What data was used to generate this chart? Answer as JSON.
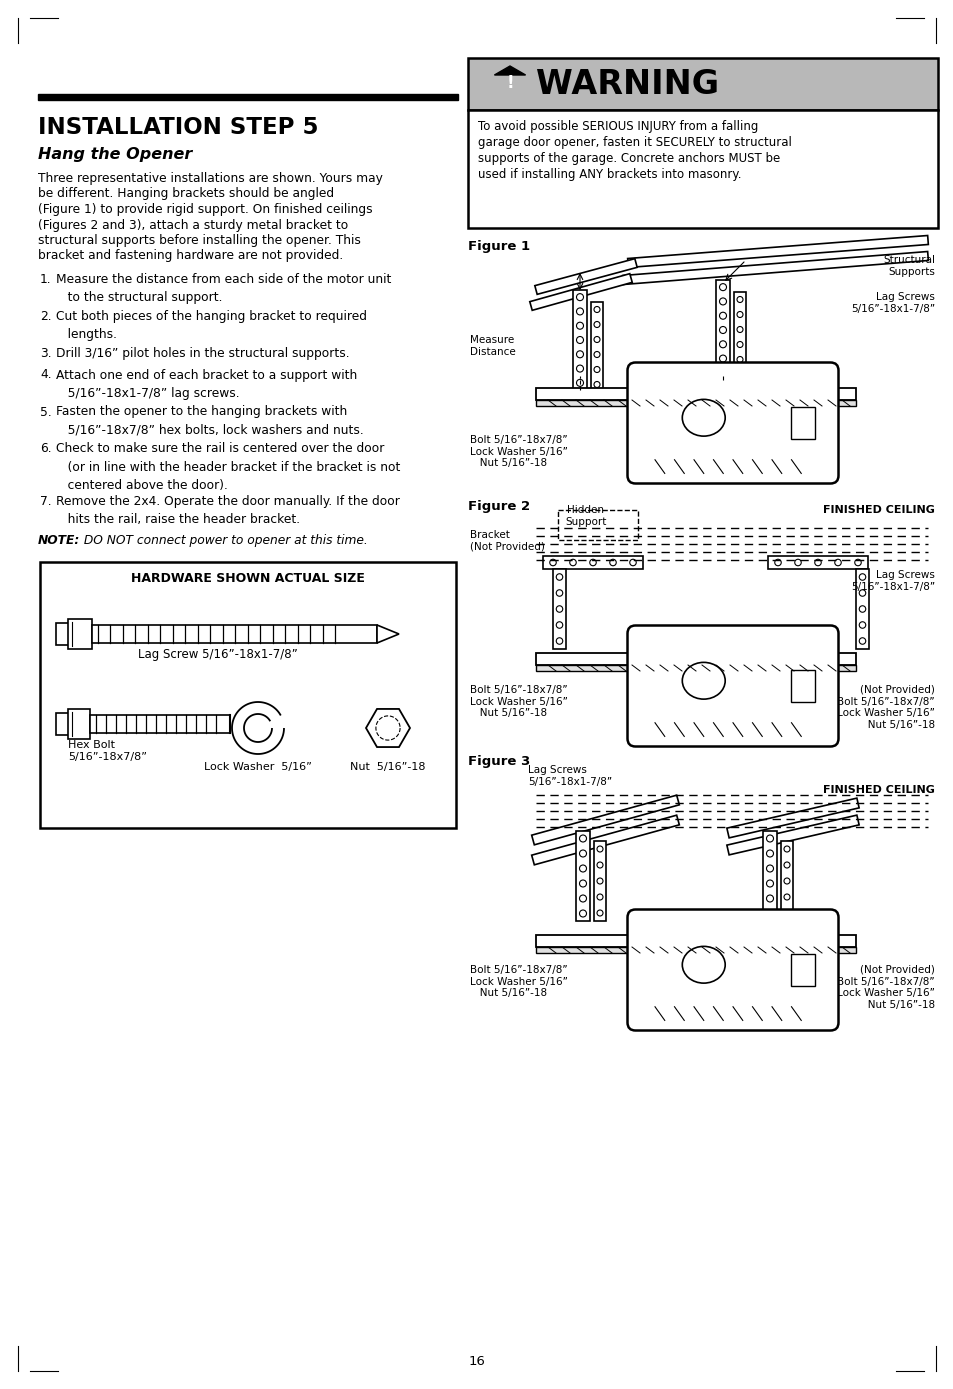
{
  "page_bg": "#ffffff",
  "title": "INSTALLATION STEP 5",
  "subtitle": "Hang the Opener",
  "intro_text": "Three representative installations are shown. Yours may\nbe different. Hanging brackets should be angled\n(Figure 1) to provide rigid support. On finished ceilings\n(Figures 2 and 3), attach a sturdy metal bracket to\nstructural supports before installing the opener. This\nbracket and fastening hardware are not provided.",
  "steps": [
    "1.  Measure the distance from each side of the motor unit\n    to the structural support.",
    "2.  Cut both pieces of the hanging bracket to required\n    lengths.",
    "3.  Drill 3/16” pilot holes in the structural supports.",
    "4.  Attach one end of each bracket to a support with\n    5/16”-18x1-7/8” lag screws.",
    "5.  Fasten the opener to the hanging brackets with\n    5/16”-18x7/8” hex bolts, lock washers and nuts.",
    "6.  Check to make sure the rail is centered over the door\n    (or in line with the header bracket if the bracket is not\n    centered above the door).",
    "7.  Remove the 2x4. Operate the door manually. If the door\n    hits the rail, raise the header bracket."
  ],
  "note_bold": "NOTE:",
  "note_italic": " DO NOT connect power to opener at this time.",
  "warning_title": "⚠  WARNING",
  "warning_text": "To avoid possible SERIOUS INJURY from a falling\ngarage door opener, fasten it SECURELY to structural\nsupports of the garage. Concrete anchors MUST be\nused if installing ANY brackets into masonry.",
  "hardware_title": "HARDWARE SHOWN ACTUAL SIZE",
  "page_number": "16"
}
